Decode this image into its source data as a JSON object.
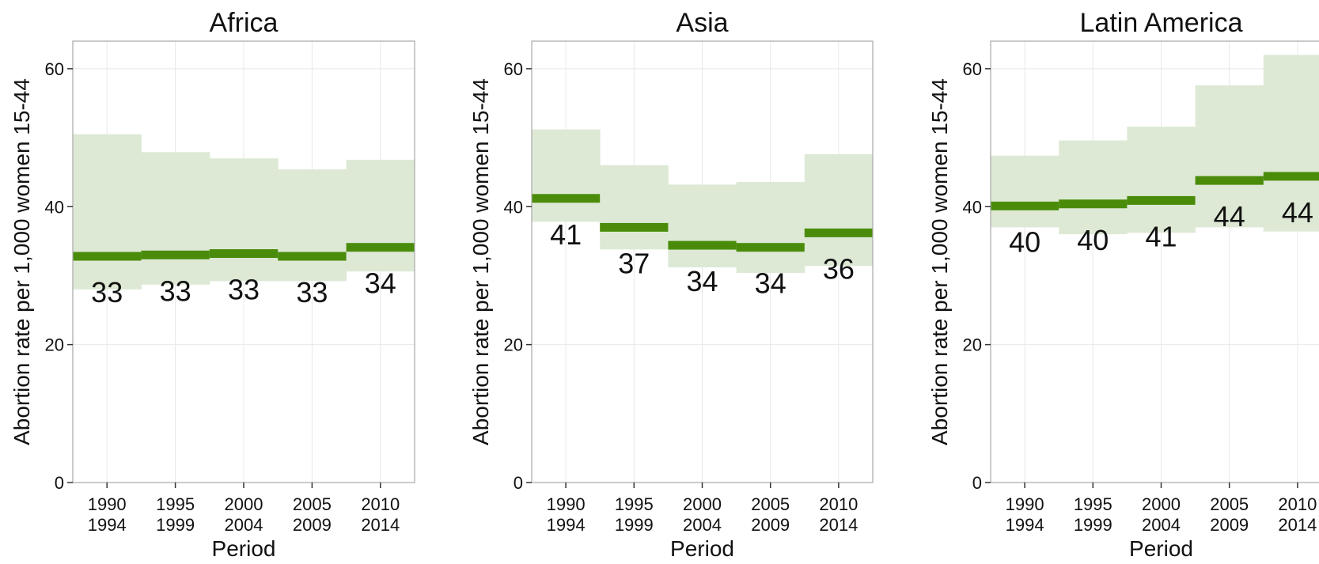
{
  "chart_data": [
    {
      "type": "step",
      "title": "Africa",
      "xlabel": "Period",
      "ylabel": "Abortion rate per 1,000 women 15-44",
      "ylim": [
        0,
        64
      ],
      "yticks": [
        0,
        20,
        40,
        60
      ],
      "grid": true,
      "categories": [
        [
          "1990",
          "1994"
        ],
        [
          "1995",
          "1999"
        ],
        [
          "2000",
          "2004"
        ],
        [
          "2005",
          "2009"
        ],
        [
          "2010",
          "2014"
        ]
      ],
      "values": [
        32.8,
        33.0,
        33.2,
        32.8,
        34.1
      ],
      "labels": [
        "33",
        "33",
        "33",
        "33",
        "34"
      ],
      "lower": [
        28.0,
        28.7,
        29.2,
        29.2,
        30.6
      ],
      "upper": [
        50.5,
        47.9,
        47.0,
        45.4,
        46.8
      ]
    },
    {
      "type": "step",
      "title": "Asia",
      "xlabel": "Period",
      "ylabel": "Abortion rate per 1,000 women 15-44",
      "ylim": [
        0,
        64
      ],
      "yticks": [
        0,
        20,
        40,
        60
      ],
      "grid": true,
      "categories": [
        [
          "1990",
          "1994"
        ],
        [
          "1995",
          "1999"
        ],
        [
          "2000",
          "2004"
        ],
        [
          "2005",
          "2009"
        ],
        [
          "2010",
          "2014"
        ]
      ],
      "values": [
        41.2,
        37.0,
        34.4,
        34.1,
        36.2
      ],
      "labels": [
        "41",
        "37",
        "34",
        "34",
        "36"
      ],
      "lower": [
        37.8,
        33.8,
        31.2,
        30.4,
        31.4
      ],
      "upper": [
        51.2,
        46.0,
        43.2,
        43.6,
        47.6
      ]
    },
    {
      "type": "step",
      "title": "Latin America",
      "xlabel": "Period",
      "ylabel": "Abortion rate per 1,000 women 15-44",
      "ylim": [
        0,
        64
      ],
      "yticks": [
        0,
        20,
        40,
        60
      ],
      "grid": true,
      "categories": [
        [
          "1990",
          "1994"
        ],
        [
          "1995",
          "1999"
        ],
        [
          "2000",
          "2004"
        ],
        [
          "2005",
          "2009"
        ],
        [
          "2010",
          "2014"
        ]
      ],
      "values": [
        40.1,
        40.4,
        40.9,
        43.8,
        44.4
      ],
      "labels": [
        "40",
        "40",
        "41",
        "44",
        "44"
      ],
      "lower": [
        37.0,
        36.0,
        36.2,
        37.0,
        36.4
      ],
      "upper": [
        47.4,
        49.6,
        51.6,
        57.6,
        62.0
      ]
    }
  ],
  "colors": {
    "line": "#4a8c0a",
    "band": "#dde9d5",
    "grid": "#e8e8e8",
    "frame": "#a8a8a8",
    "text": "#111111"
  }
}
